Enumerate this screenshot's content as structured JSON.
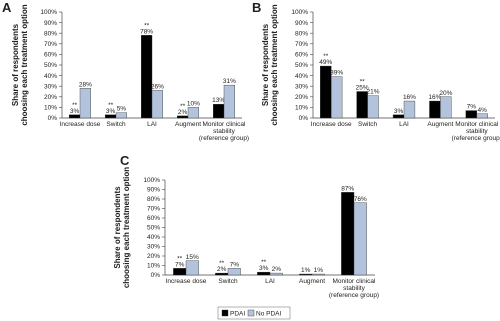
{
  "chart_data": [
    {
      "type": "bar",
      "panel": "A",
      "ylabel": "Share of respondents\nchoosing each treatment option",
      "categories": [
        "Increase dose",
        "Switch",
        "LAI",
        "Augment",
        "Monitor clinical\nstability\n(reference group)"
      ],
      "series": [
        {
          "color": "#000000",
          "values": [
            3,
            3,
            78,
            2,
            13
          ],
          "value_labels": [
            "3%",
            "3%",
            "78%",
            "2%",
            "13%"
          ],
          "significance": [
            "**",
            "**",
            "**",
            "**",
            null
          ]
        },
        {
          "color": "#b4c3dc",
          "values": [
            28,
            5,
            26,
            10,
            31
          ],
          "value_labels": [
            "28%",
            "5%",
            "26%",
            "10%",
            "31%"
          ]
        }
      ],
      "ylim": [
        0,
        100
      ],
      "yticks": [
        {
          "value": 0,
          "label": "0%"
        },
        {
          "value": 10,
          "label": "10%"
        },
        {
          "value": 20,
          "label": "20%"
        },
        {
          "value": 30,
          "label": "30%"
        },
        {
          "value": 40,
          "label": "40%"
        },
        {
          "value": 50,
          "label": "50%"
        },
        {
          "value": 60,
          "label": "60%"
        },
        {
          "value": 70,
          "label": "70%"
        },
        {
          "value": 80,
          "label": "80%"
        },
        {
          "value": 90,
          "label": "90%"
        },
        {
          "value": 100,
          "label": "100%"
        }
      ]
    },
    {
      "type": "bar",
      "panel": "B",
      "ylabel": "Share of respondents\nchoosing each treatment option",
      "categories": [
        "Increase dose",
        "Switch",
        "LAI",
        "Augment",
        "Monitor clinical\nstability\n(reference group)"
      ],
      "series": [
        {
          "color": "#000000",
          "values": [
            49,
            25,
            3,
            16,
            7
          ],
          "value_labels": [
            "49%",
            "25%",
            "3%",
            "16%",
            "7%"
          ],
          "significance": [
            "**",
            "**",
            null,
            null,
            null
          ]
        },
        {
          "color": "#b4c3dc",
          "values": [
            39,
            21,
            16,
            20,
            4
          ],
          "value_labels": [
            "39%",
            "21%",
            "16%",
            "20%",
            "4%"
          ]
        }
      ],
      "ylim": [
        0,
        100
      ],
      "yticks": [
        {
          "value": 0,
          "label": "0%"
        },
        {
          "value": 10,
          "label": "10%"
        },
        {
          "value": 20,
          "label": "20%"
        },
        {
          "value": 30,
          "label": "30%"
        },
        {
          "value": 40,
          "label": "40%"
        },
        {
          "value": 50,
          "label": "50%"
        },
        {
          "value": 60,
          "label": "60%"
        },
        {
          "value": 70,
          "label": "70%"
        },
        {
          "value": 80,
          "label": "80%"
        },
        {
          "value": 90,
          "label": "90%"
        },
        {
          "value": 100,
          "label": "100%"
        }
      ]
    },
    {
      "type": "bar",
      "panel": "C",
      "ylabel": "Share of respondents\nchoosing each treatment option",
      "categories": [
        "Increase dose",
        "Switch",
        "LAI",
        "Augment",
        "Monitor clinical\nstability\n(reference group)"
      ],
      "series": [
        {
          "name": "PDAI",
          "color": "#000000",
          "values": [
            7,
            2,
            3,
            1,
            87
          ],
          "value_labels": [
            "7%",
            "2%",
            "3%",
            "1%",
            "87%"
          ],
          "significance": [
            "**",
            "**",
            "**",
            null,
            null
          ]
        },
        {
          "name": "No PDAI",
          "color": "#b4c3dc",
          "values": [
            15,
            7,
            2,
            1,
            76
          ],
          "value_labels": [
            "15%",
            "7%",
            "2%",
            "1%",
            "76%"
          ]
        }
      ],
      "ylim": [
        0,
        100
      ],
      "yticks": [
        {
          "value": 0,
          "label": "0%"
        },
        {
          "value": 10,
          "label": "10%"
        },
        {
          "value": 20,
          "label": "20%"
        },
        {
          "value": 30,
          "label": "30%"
        },
        {
          "value": 40,
          "label": "40%"
        },
        {
          "value": 50,
          "label": "50%"
        },
        {
          "value": 60,
          "label": "60%"
        },
        {
          "value": 70,
          "label": "70%"
        },
        {
          "value": 80,
          "label": "80%"
        },
        {
          "value": 90,
          "label": "90%"
        },
        {
          "value": 100,
          "label": "100%"
        }
      ]
    }
  ]
}
